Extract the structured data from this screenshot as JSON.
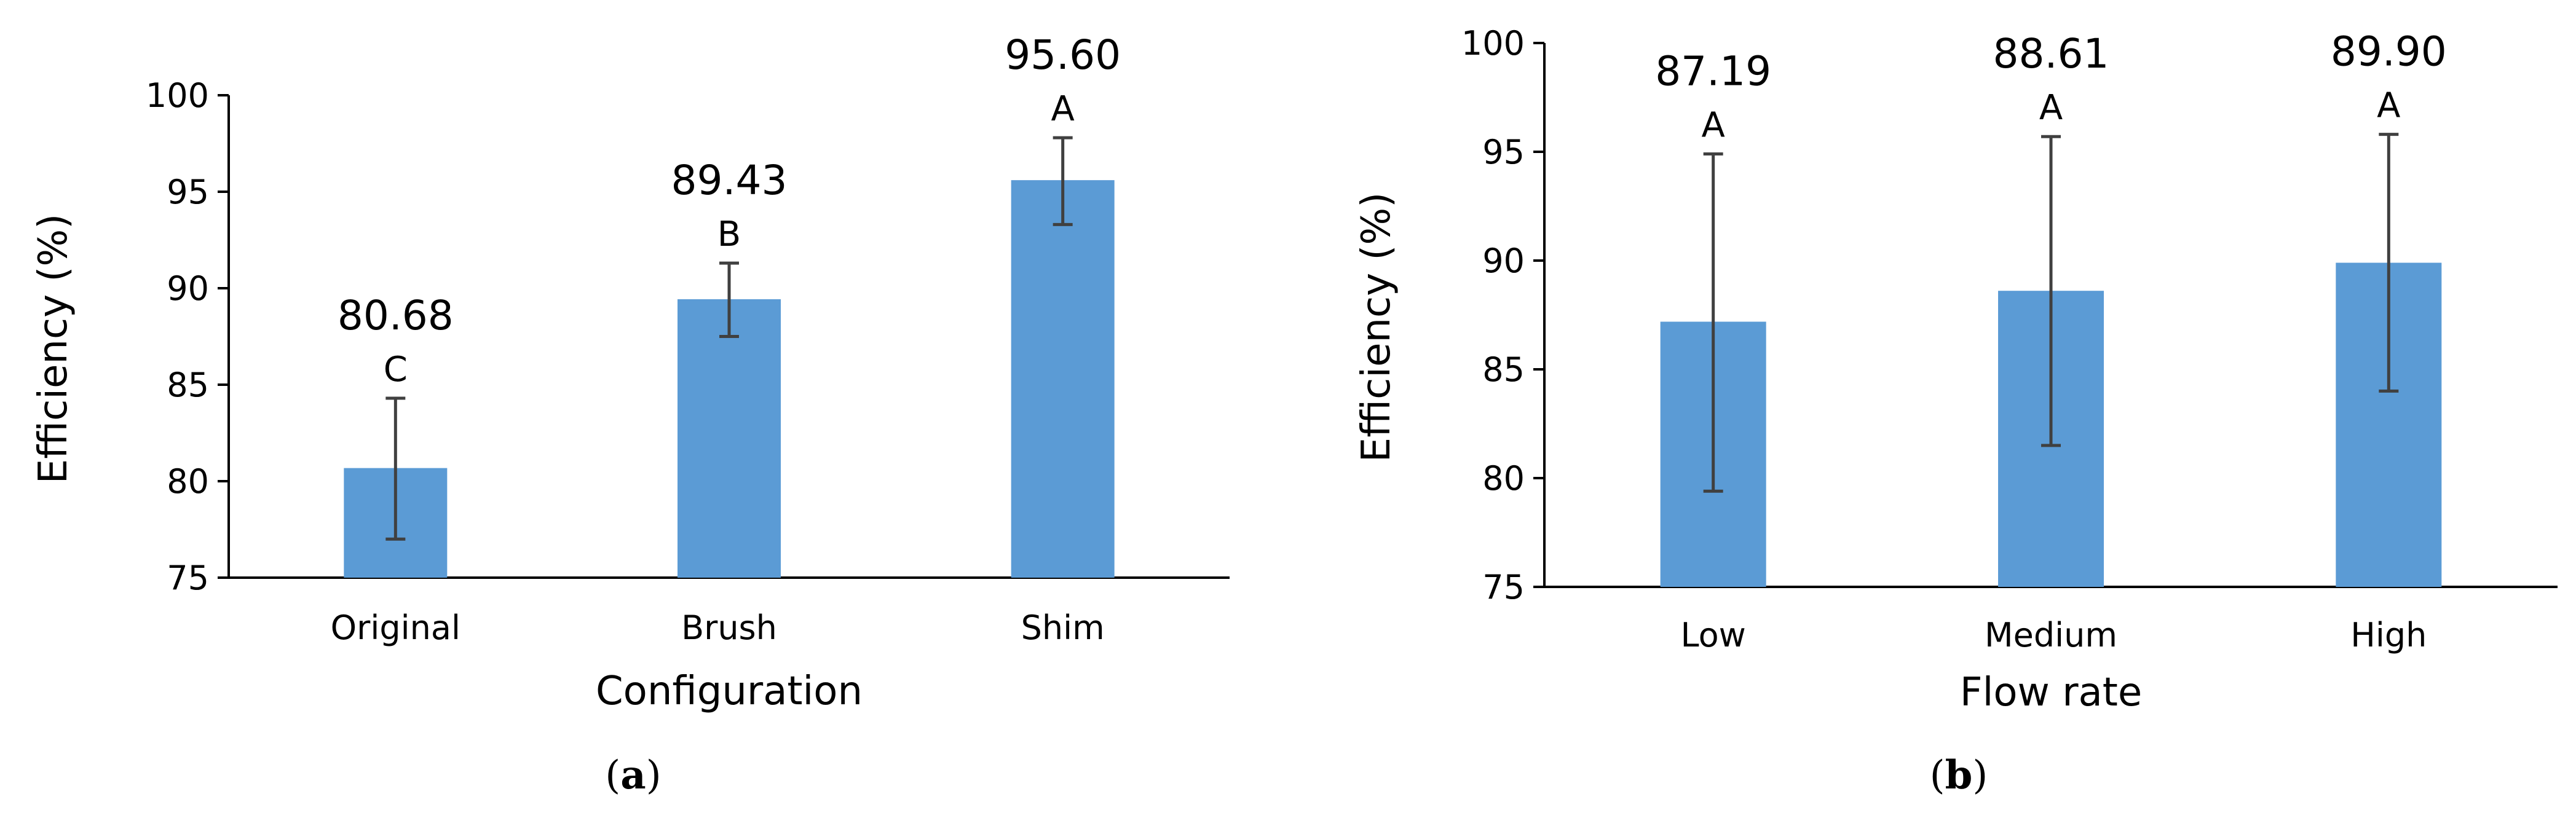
{
  "chart_data": [
    {
      "type": "bar",
      "panel_label": "a",
      "title": "",
      "xlabel": "Configuration",
      "ylabel": "Efficiency (%)",
      "categories": [
        "Original",
        "Brush",
        "Shim"
      ],
      "values": [
        80.68,
        89.43,
        95.6
      ],
      "value_labels": [
        "80.68",
        "89.43",
        "95.60"
      ],
      "error_bars": [
        [
          77.0,
          84.3
        ],
        [
          87.5,
          91.3
        ],
        [
          93.3,
          97.8
        ]
      ],
      "group_letters": [
        "C",
        "B",
        "A"
      ],
      "ylim": [
        75,
        100
      ],
      "yticks": [
        75,
        80,
        85,
        90,
        95,
        100
      ],
      "bar_color": "#5B9BD5",
      "grid": false
    },
    {
      "type": "bar",
      "panel_label": "b",
      "title": "",
      "xlabel": "Flow rate",
      "ylabel": "Efficiency (%)",
      "categories": [
        "Low",
        "Medium",
        "High"
      ],
      "values": [
        87.19,
        88.61,
        89.9
      ],
      "value_labels": [
        "87.19",
        "88.61",
        "89.90"
      ],
      "error_bars": [
        [
          79.4,
          94.9
        ],
        [
          81.5,
          95.7
        ],
        [
          84.0,
          95.8
        ]
      ],
      "group_letters": [
        "A",
        "A",
        "A"
      ],
      "ylim": [
        75,
        100
      ],
      "yticks": [
        75,
        80,
        85,
        90,
        95,
        100
      ],
      "bar_color": "#5B9BD5",
      "grid": false
    }
  ]
}
